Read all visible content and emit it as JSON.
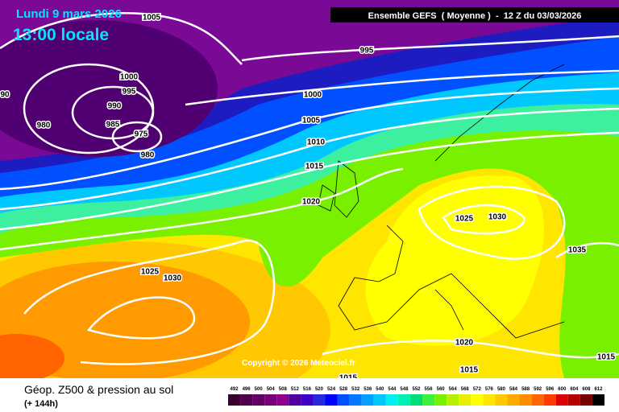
{
  "header": {
    "date": "Lundi 9 mars 2026",
    "time": "13:00 locale",
    "model": "Ensemble GEFS  ( Moyenne )  -  12 Z du 03/03/2026"
  },
  "isobar_labels": [
    "1005",
    "995",
    "1000",
    "995",
    "990",
    "985",
    "975",
    "980",
    "980",
    "90",
    "1000",
    "1005",
    "1010",
    "1015",
    "1020",
    "1025",
    "1030",
    "1025",
    "1030",
    "1035",
    "1020",
    "1015",
    "1015",
    "1015"
  ],
  "copyright": "Copyright © 2026 Meteociel.fr",
  "footer": {
    "title": "Géop. Z500 & pression au sol",
    "lead": "(+ 144h)"
  },
  "legend": {
    "values": [
      492,
      496,
      500,
      504,
      508,
      512,
      516,
      520,
      524,
      528,
      532,
      536,
      540,
      544,
      548,
      552,
      556,
      560,
      564,
      568,
      572,
      576,
      580,
      584,
      588,
      592,
      596,
      600,
      604,
      608,
      612
    ],
    "colors": [
      "#3c0030",
      "#50004c",
      "#640064",
      "#780078",
      "#8c008c",
      "#5000a0",
      "#3c00c8",
      "#2828dc",
      "#0000ff",
      "#0050ff",
      "#0078ff",
      "#00a0ff",
      "#00c8ff",
      "#00f0f0",
      "#00f0b4",
      "#00dc78",
      "#3cf03c",
      "#78f000",
      "#b4f000",
      "#e6f000",
      "#ffff00",
      "#ffe600",
      "#ffc800",
      "#ffaa00",
      "#ff8c00",
      "#ff6400",
      "#ff3c00",
      "#dc0000",
      "#b40000",
      "#780000",
      "#000000"
    ]
  }
}
